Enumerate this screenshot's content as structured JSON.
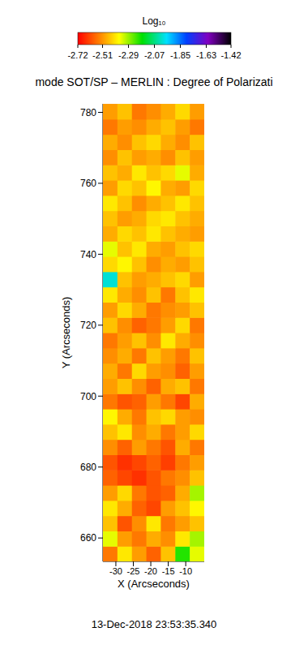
{
  "chart_data": {
    "type": "heatmap",
    "title": "mode SOT/SP – MERLIN : Degree of Polarizati",
    "x_label": "X (Arcseconds)",
    "y_label": "Y (Arcseconds)",
    "annotations": [
      "13-Dec-2018 23:53:35.340"
    ],
    "xlim": [
      -33.7,
      -4.7
    ],
    "ylim": [
      653.4,
      782.4
    ],
    "xticks": [
      -30,
      -25,
      -20,
      -15,
      -10
    ],
    "yticks": [
      660,
      680,
      700,
      720,
      740,
      760,
      780
    ],
    "x": [
      -31.63,
      -27.49,
      -23.34,
      -19.2,
      -15.06,
      -10.91,
      -6.77
    ],
    "y": [
      655.55,
      659.85,
      664.15,
      668.45,
      672.75,
      677.05,
      681.35,
      685.65,
      689.95,
      694.25,
      698.55,
      702.85,
      707.15,
      711.45,
      715.75,
      720.05,
      724.35,
      728.65,
      732.95,
      737.25,
      741.55,
      745.85,
      750.15,
      754.45,
      758.75,
      763.05,
      767.35,
      771.65,
      775.95,
      780.25
    ],
    "cells": [
      [
        -2.55,
        -2.4,
        -2.5,
        -2.58,
        -2.45,
        -2.2,
        -2.35
      ],
      [
        -2.35,
        -2.5,
        -2.55,
        -2.48,
        -2.52,
        -2.4,
        -2.3
      ],
      [
        -2.45,
        -2.6,
        -2.52,
        -2.4,
        -2.55,
        -2.5,
        -2.45
      ],
      [
        -2.4,
        -2.48,
        -2.58,
        -2.62,
        -2.5,
        -2.45,
        -2.38
      ],
      [
        -2.5,
        -2.42,
        -2.55,
        -2.6,
        -2.58,
        -2.48,
        -2.3
      ],
      [
        -2.58,
        -2.62,
        -2.65,
        -2.6,
        -2.55,
        -2.52,
        -2.45
      ],
      [
        -2.6,
        -2.65,
        -2.62,
        -2.58,
        -2.63,
        -2.55,
        -2.5
      ],
      [
        -2.52,
        -2.58,
        -2.5,
        -2.55,
        -2.6,
        -2.48,
        -2.55
      ],
      [
        -2.45,
        -2.4,
        -2.52,
        -2.48,
        -2.55,
        -2.5,
        -2.42
      ],
      [
        -2.38,
        -2.48,
        -2.55,
        -2.45,
        -2.42,
        -2.5,
        -2.52
      ],
      [
        -2.55,
        -2.6,
        -2.58,
        -2.5,
        -2.55,
        -2.62,
        -2.48
      ],
      [
        -2.5,
        -2.45,
        -2.52,
        -2.58,
        -2.48,
        -2.45,
        -2.55
      ],
      [
        -2.48,
        -2.55,
        -2.42,
        -2.5,
        -2.52,
        -2.58,
        -2.5
      ],
      [
        -2.52,
        -2.48,
        -2.55,
        -2.45,
        -2.5,
        -2.55,
        -2.45
      ],
      [
        -2.55,
        -2.5,
        -2.45,
        -2.52,
        -2.4,
        -2.48,
        -2.52
      ],
      [
        -2.45,
        -2.52,
        -2.58,
        -2.55,
        -2.5,
        -2.42,
        -2.55
      ],
      [
        -2.5,
        -2.42,
        -2.48,
        -2.55,
        -2.52,
        -2.5,
        -2.45
      ],
      [
        -2.4,
        -2.48,
        -2.52,
        -2.45,
        -2.55,
        -2.45,
        -2.4
      ],
      [
        -2.0,
        -2.45,
        -2.5,
        -2.48,
        -2.45,
        -2.42,
        -2.5
      ],
      [
        -2.42,
        -2.38,
        -2.45,
        -2.52,
        -2.48,
        -2.5,
        -2.45
      ],
      [
        -2.35,
        -2.45,
        -2.4,
        -2.48,
        -2.5,
        -2.45,
        -2.42
      ],
      [
        -2.48,
        -2.42,
        -2.45,
        -2.4,
        -2.45,
        -2.48,
        -2.5
      ],
      [
        -2.45,
        -2.5,
        -2.48,
        -2.42,
        -2.4,
        -2.45,
        -2.48
      ],
      [
        -2.4,
        -2.45,
        -2.52,
        -2.48,
        -2.45,
        -2.4,
        -2.45
      ],
      [
        -2.5,
        -2.42,
        -2.45,
        -2.38,
        -2.48,
        -2.5,
        -2.42
      ],
      [
        -2.45,
        -2.48,
        -2.4,
        -2.45,
        -2.42,
        -2.35,
        -2.48
      ],
      [
        -2.52,
        -2.45,
        -2.5,
        -2.48,
        -2.52,
        -2.45,
        -2.5
      ],
      [
        -2.48,
        -2.52,
        -2.45,
        -2.42,
        -2.48,
        -2.52,
        -2.45
      ],
      [
        -2.55,
        -2.5,
        -2.52,
        -2.48,
        -2.45,
        -2.5,
        -2.55
      ],
      [
        -2.5,
        -2.45,
        -2.55,
        -2.52,
        -2.48,
        -2.42,
        -2.5
      ]
    ],
    "colorbar": {
      "label": "Log₁₀",
      "range": [
        -2.72,
        -1.42
      ],
      "ticks": [
        -2.72,
        -2.51,
        -2.29,
        -2.07,
        -1.85,
        -1.63,
        -1.42
      ]
    }
  }
}
